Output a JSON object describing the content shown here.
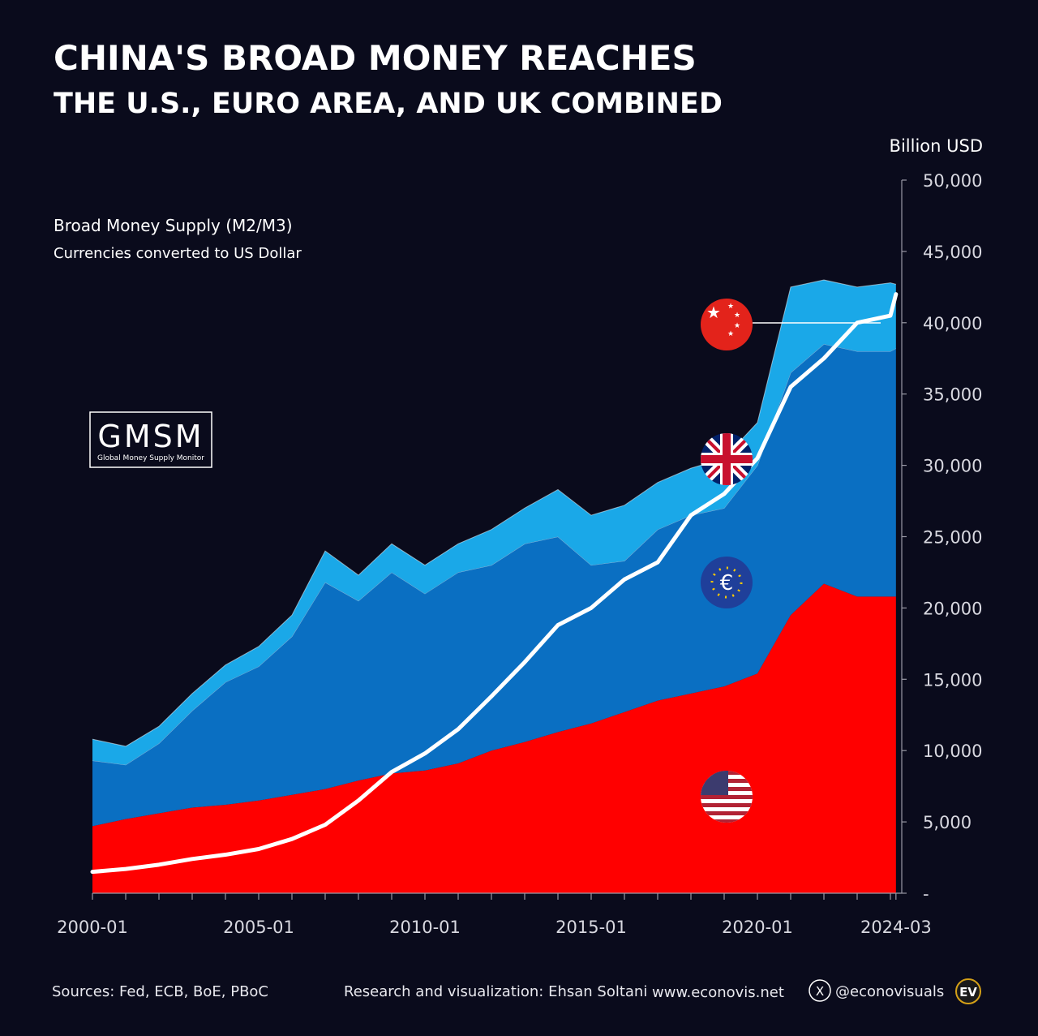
{
  "title": "CHINA'S BROAD MONEY REACHES",
  "subtitle": "THE U.S., EURO AREA, AND UK COMBINED",
  "note_title": "Broad Money Supply (M2/M3)",
  "note_subtitle": "Currencies converted to US Dollar",
  "logo": {
    "text": "GMSM",
    "caption": "Global Money Supply Monitor"
  },
  "footer": {
    "sources": "Sources: Fed, ECB, BoE, PBoC",
    "credit": "Research and visualization: Ehsan Soltani",
    "website": "www.econovis.net",
    "handle": "@econovisuals",
    "badge": "EV"
  },
  "chart_data": {
    "type": "stacked_area_line",
    "y_label": "Billion USD",
    "categories": [
      "2000-01",
      "2001-01",
      "2002-01",
      "2003-01",
      "2004-01",
      "2005-01",
      "2006-01",
      "2007-01",
      "2008-01",
      "2009-01",
      "2010-01",
      "2011-01",
      "2012-01",
      "2013-01",
      "2014-01",
      "2015-01",
      "2016-01",
      "2017-01",
      "2018-01",
      "2019-01",
      "2020-01",
      "2021-01",
      "2022-01",
      "2023-01",
      "2024-01",
      "2024-03"
    ],
    "xticks": [
      "2000-01",
      "2005-01",
      "2010-01",
      "2015-01",
      "2020-01",
      "2024-03"
    ],
    "ylim": [
      0,
      50000
    ],
    "yticks": [
      {
        "value": 0,
        "label": "-"
      },
      {
        "value": 5000,
        "label": "5,000"
      },
      {
        "value": 10000,
        "label": "10,000"
      },
      {
        "value": 15000,
        "label": "15,000"
      },
      {
        "value": 20000,
        "label": "20,000"
      },
      {
        "value": 25000,
        "label": "25,000"
      },
      {
        "value": 30000,
        "label": "30,000"
      },
      {
        "value": 35000,
        "label": "35,000"
      },
      {
        "value": 40000,
        "label": "40,000"
      },
      {
        "value": 45000,
        "label": "45,000"
      },
      {
        "value": 50000,
        "label": "50,000"
      }
    ],
    "series": [
      {
        "color": "#ff0000",
        "stack": true,
        "values": [
          4700,
          5200,
          5600,
          6000,
          6200,
          6500,
          6900,
          7300,
          7900,
          8400,
          8600,
          9100,
          10000,
          10600,
          11300,
          11900,
          12700,
          13500,
          14000,
          14500,
          15400,
          19500,
          21700,
          20800,
          20800,
          20800
        ]
      },
      {
        "color": "#0a6fc2",
        "stack": true,
        "values": [
          4600,
          3800,
          4900,
          6800,
          8600,
          9400,
          11100,
          14500,
          12600,
          14100,
          12400,
          13400,
          13000,
          13900,
          13700,
          11100,
          10600,
          12000,
          12500,
          12500,
          14600,
          17000,
          16800,
          17200,
          17200,
          17400
        ]
      },
      {
        "color": "#1aa8e8",
        "stack": true,
        "values": [
          1500,
          1300,
          1200,
          1200,
          1200,
          1400,
          1500,
          2200,
          1800,
          2000,
          2000,
          2000,
          2500,
          2500,
          3300,
          3500,
          3900,
          3300,
          3300,
          3500,
          3000,
          6000,
          4500,
          4500,
          4800,
          4500
        ]
      },
      {
        "color": "#ffffff",
        "stack": false,
        "values": [
          1500,
          1700,
          2000,
          2400,
          2700,
          3100,
          3800,
          4800,
          6500,
          8500,
          9800,
          11500,
          13800,
          16200,
          18800,
          20000,
          22000,
          23200,
          26500,
          28000,
          30500,
          35500,
          37500,
          40000,
          40500,
          42000
        ]
      }
    ]
  }
}
